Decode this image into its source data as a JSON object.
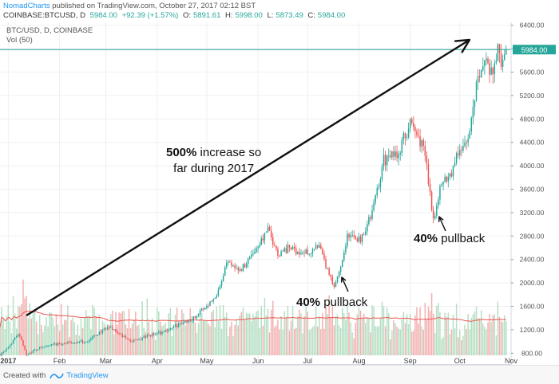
{
  "header": {
    "author": "NomadCharts",
    "published": "published on TradingView.com, October 27, 2017 02:12 BST",
    "symbol": "COINBASE:BTCUSD, D",
    "last": "5984.00",
    "change": "+92.39 (+1.57%)",
    "open_label": "O:",
    "open": "5891.61",
    "high_label": "H:",
    "high": "5998.00",
    "low_label": "L:",
    "low": "5873.49",
    "close_label": "C:",
    "close": "5984.00"
  },
  "legend": {
    "main": "BTC/USD, D, COINBASE",
    "volume": "Vol (50)"
  },
  "colors": {
    "up": "#26a69a",
    "down": "#ef5350",
    "up_vol": "#b5dfc3",
    "down_vol": "#f4b0b0",
    "price_line": "#26a69a",
    "ma": "#ef5350",
    "arrow": "#111111"
  },
  "price_tag": "5984.00",
  "annotations": {
    "increase_bold": "500%",
    "increase_rest": " increase so",
    "increase_line2": "far during 2017",
    "pullback1_bold": "40%",
    "pullback1_rest": " pullback",
    "pullback2_bold": "40%",
    "pullback2_rest": " pullback"
  },
  "footer": {
    "created_with": "Created with",
    "brand": "TradingView",
    "logo_icon": "tradingview-logo-icon"
  },
  "chart_data": {
    "type": "candlestick",
    "title": "BTC/USD, D, COINBASE",
    "ylim": [
      600,
      6450
    ],
    "y_ticks": [
      800,
      1200,
      1600,
      2000,
      2400,
      2800,
      3200,
      3600,
      4000,
      4400,
      4800,
      5200,
      5600,
      6000,
      6400
    ],
    "y_tick_labels": [
      "800.00",
      "1200.00",
      "1600.00",
      "2000.00",
      "2400.00",
      "2800.00",
      "3200.00",
      "3600.00",
      "4000.00",
      "4400.00",
      "4800.00",
      "5200.00",
      "5600.00",
      "6000.00",
      "6400.00"
    ],
    "x_labels": [
      "2017",
      "Feb",
      "Mar",
      "Apr",
      "May",
      "Jun",
      "Jul",
      "Aug",
      "Sep",
      "Oct",
      "Nov"
    ],
    "x_label_days": [
      0,
      31,
      59,
      90,
      120,
      151,
      181,
      212,
      243,
      273,
      304
    ],
    "x_range_days": [
      -5,
      304
    ],
    "series_keypoints": [
      {
        "day": -5,
        "price": 780
      },
      {
        "day": 3,
        "price": 1000
      },
      {
        "day": 6,
        "price": 1150
      },
      {
        "day": 11,
        "price": 780
      },
      {
        "day": 20,
        "price": 900
      },
      {
        "day": 31,
        "price": 960
      },
      {
        "day": 48,
        "price": 1000
      },
      {
        "day": 55,
        "price": 1150
      },
      {
        "day": 62,
        "price": 1250
      },
      {
        "day": 68,
        "price": 1100
      },
      {
        "day": 75,
        "price": 1000
      },
      {
        "day": 85,
        "price": 1100
      },
      {
        "day": 95,
        "price": 1180
      },
      {
        "day": 112,
        "price": 1400
      },
      {
        "day": 125,
        "price": 1750
      },
      {
        "day": 133,
        "price": 2400
      },
      {
        "day": 140,
        "price": 2200
      },
      {
        "day": 150,
        "price": 2600
      },
      {
        "day": 157,
        "price": 2900
      },
      {
        "day": 163,
        "price": 2500
      },
      {
        "day": 170,
        "price": 2600
      },
      {
        "day": 178,
        "price": 2500
      },
      {
        "day": 188,
        "price": 2600
      },
      {
        "day": 197,
        "price": 1900
      },
      {
        "day": 201,
        "price": 2300
      },
      {
        "day": 205,
        "price": 2800
      },
      {
        "day": 213,
        "price": 2750
      },
      {
        "day": 220,
        "price": 3200
      },
      {
        "day": 227,
        "price": 4100
      },
      {
        "day": 235,
        "price": 4200
      },
      {
        "day": 243,
        "price": 4700
      },
      {
        "day": 248,
        "price": 4500
      },
      {
        "day": 252,
        "price": 4200
      },
      {
        "day": 257,
        "price": 3100
      },
      {
        "day": 262,
        "price": 3700
      },
      {
        "day": 268,
        "price": 3900
      },
      {
        "day": 273,
        "price": 4300
      },
      {
        "day": 278,
        "price": 4400
      },
      {
        "day": 284,
        "price": 5600
      },
      {
        "day": 289,
        "price": 5800
      },
      {
        "day": 293,
        "price": 5500
      },
      {
        "day": 296,
        "price": 6000
      },
      {
        "day": 298,
        "price": 5700
      },
      {
        "day": 301,
        "price": 5984
      }
    ],
    "volume_ma_period": 50
  }
}
